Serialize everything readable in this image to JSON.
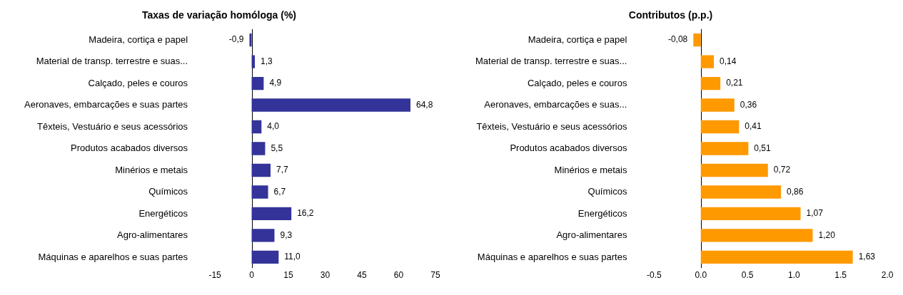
{
  "chart_data": [
    {
      "type": "bar",
      "orientation": "horizontal",
      "title": "Taxas de variação homóloga (%)",
      "categories": [
        "Madeira, cortiça e papel",
        "Material de transp. terrestre e suas...",
        "Calçado, peles e couros",
        "Aeronaves, embarcações e suas partes",
        "Têxteis, Vestuário e seus acessórios",
        "Produtos acabados diversos",
        "Minérios e metais",
        "Químicos",
        "Energéticos",
        "Agro-alimentares",
        "Máquinas e aparelhos e suas partes"
      ],
      "series": [
        {
          "color": "#333399",
          "values": [
            -0.9,
            1.3,
            4.9,
            64.8,
            4.0,
            5.5,
            7.7,
            6.7,
            16.2,
            9.3,
            11.0
          ],
          "value_labels": [
            "-0,9",
            "1,3",
            "4,9",
            "64,8",
            "4,0",
            "5,5",
            "7,7",
            "6,7",
            "16,2",
            "9,3",
            "11,0"
          ]
        }
      ],
      "xlim": [
        -15,
        75
      ],
      "xticks": [
        -15,
        0,
        15,
        30,
        45,
        60,
        75
      ],
      "ref_lines": [
        {
          "axis": "x",
          "value": 0,
          "color": "#000000"
        }
      ],
      "grid": false,
      "legend": false
    },
    {
      "type": "bar",
      "orientation": "horizontal",
      "title": "Contributos (p.p.)",
      "categories": [
        "Madeira, cortiça e papel",
        "Material de transp. terrestre e suas...",
        "Calçado, peles e couros",
        "Aeronaves, embarcações e suas...",
        "Têxteis, Vestuário e seus acessórios",
        "Produtos acabados diversos",
        "Minérios e metais",
        "Químicos",
        "Energéticos",
        "Agro-alimentares",
        "Máquinas e aparelhos e suas partes"
      ],
      "series": [
        {
          "color": "#ff9900",
          "values": [
            -0.08,
            0.14,
            0.21,
            0.36,
            0.41,
            0.51,
            0.72,
            0.86,
            1.07,
            1.2,
            1.63
          ],
          "value_labels": [
            "-0,08",
            "0,14",
            "0,21",
            "0,36",
            "0,41",
            "0,51",
            "0,72",
            "0,86",
            "1,07",
            "1,20",
            "1,63"
          ]
        }
      ],
      "xlim": [
        -0.5,
        2.0
      ],
      "xticks": [
        -0.5,
        {
          "value": 0,
          "label": "0.0"
        },
        0.5,
        {
          "value": 1,
          "label": "1.0"
        },
        1.5,
        {
          "value": 2,
          "label": "2.0"
        }
      ],
      "ref_lines": [
        {
          "axis": "x",
          "value": 0,
          "color": "#000000"
        }
      ],
      "grid": false,
      "legend": false
    }
  ]
}
